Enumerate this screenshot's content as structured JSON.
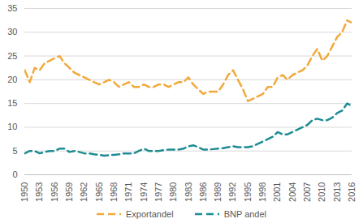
{
  "chart_data": {
    "type": "line",
    "x": [
      1950,
      1951,
      1952,
      1953,
      1954,
      1955,
      1956,
      1957,
      1958,
      1959,
      1960,
      1961,
      1962,
      1963,
      1964,
      1965,
      1966,
      1967,
      1968,
      1969,
      1970,
      1971,
      1972,
      1973,
      1974,
      1975,
      1976,
      1977,
      1978,
      1979,
      1980,
      1981,
      1982,
      1983,
      1984,
      1985,
      1986,
      1987,
      1988,
      1989,
      1990,
      1991,
      1992,
      1993,
      1994,
      1995,
      1996,
      1997,
      1998,
      1999,
      2000,
      2001,
      2002,
      2003,
      2004,
      2005,
      2006,
      2007,
      2008,
      2009,
      2010,
      2011,
      2012,
      2013,
      2014,
      2015,
      2016
    ],
    "series": [
      {
        "name": "Exportandel",
        "color": "#f2a93b",
        "line_style": "dashed",
        "values": [
          22,
          19.5,
          22.5,
          22,
          23.5,
          24,
          24.5,
          25,
          23.5,
          22.5,
          21.5,
          21,
          20.5,
          20,
          19.5,
          19,
          19.5,
          20,
          19.5,
          18.5,
          19,
          19.5,
          18.5,
          18.5,
          19,
          18.5,
          18.5,
          19,
          19,
          18.5,
          19,
          19.5,
          19.5,
          20.5,
          19,
          18,
          17,
          17.5,
          17.5,
          17.5,
          19,
          21,
          22,
          20,
          18,
          15.5,
          16,
          16.5,
          17,
          18.5,
          18.5,
          20.5,
          21,
          20,
          21,
          21.5,
          22,
          23,
          25,
          26.5,
          24,
          25,
          27,
          29,
          30,
          32.5,
          32
        ]
      },
      {
        "name": "BNP andel",
        "color": "#1e8c93",
        "line_style": "dashed",
        "values": [
          4.5,
          5,
          5,
          4.5,
          4.8,
          5,
          5,
          5.5,
          5.5,
          4.8,
          5,
          4.8,
          4.5,
          4.5,
          4.3,
          4.2,
          4,
          4.1,
          4.2,
          4.3,
          4.5,
          4.5,
          4.5,
          5,
          5.5,
          5,
          5,
          5,
          5.2,
          5.3,
          5.3,
          5.3,
          5.5,
          6,
          6.2,
          5.8,
          5.3,
          5.3,
          5.4,
          5.5,
          5.6,
          5.8,
          6,
          5.8,
          5.8,
          5.8,
          6,
          6.5,
          7,
          7.5,
          8,
          9,
          8.5,
          8.5,
          9,
          9.5,
          10,
          10.5,
          11.5,
          11.8,
          11.5,
          11.5,
          12,
          13,
          13.5,
          15,
          14.5
        ]
      }
    ],
    "xlim": [
      1950,
      2016
    ],
    "xticks": [
      1950,
      1953,
      1956,
      1959,
      1962,
      1965,
      1968,
      1971,
      1974,
      1977,
      1980,
      1983,
      1986,
      1989,
      1992,
      1995,
      1998,
      2001,
      2004,
      2007,
      2010,
      2013,
      2016
    ],
    "ylim": [
      0,
      35
    ],
    "yticks": [
      0,
      5,
      10,
      15,
      20,
      25,
      30,
      35
    ],
    "grid": true,
    "legend": "bottom"
  }
}
